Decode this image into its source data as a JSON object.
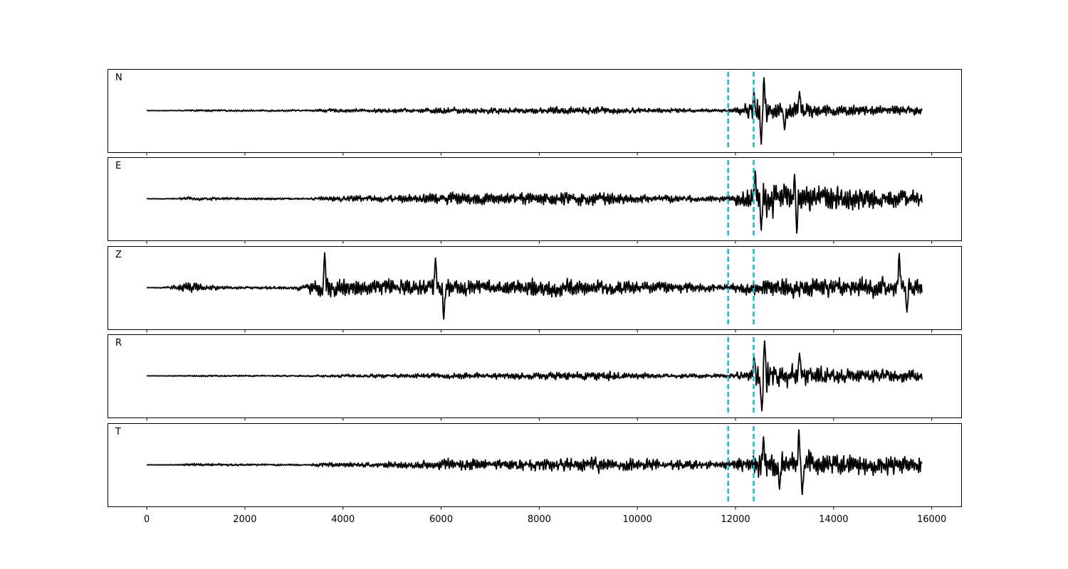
{
  "chart_data": {
    "type": "line",
    "xlim": [
      -800,
      16600
    ],
    "x_ticks": [
      "0",
      "2000",
      "4000",
      "6000",
      "8000",
      "10000",
      "12000",
      "14000",
      "16000"
    ],
    "tick_values": [
      0,
      2000,
      4000,
      6000,
      8000,
      10000,
      12000,
      14000,
      16000
    ],
    "x_range": [
      0,
      15800
    ],
    "vlines": [
      11850,
      12370
    ],
    "vline_color": "#17becf",
    "trace_color": "#000000",
    "grid": false,
    "panels": [
      {
        "label": "N",
        "envelope": [
          [
            0,
            0.015
          ],
          [
            700,
            0.02
          ],
          [
            900,
            0.05
          ],
          [
            3300,
            0.05
          ],
          [
            3500,
            0.09
          ],
          [
            5500,
            0.12
          ],
          [
            6100,
            0.18
          ],
          [
            7800,
            0.16
          ],
          [
            8000,
            0.2
          ],
          [
            9000,
            0.22
          ],
          [
            10000,
            0.15
          ],
          [
            11800,
            0.08
          ],
          [
            12000,
            0.15
          ],
          [
            12300,
            0.5
          ],
          [
            12500,
            1.0
          ],
          [
            12700,
            0.5
          ],
          [
            13000,
            0.4
          ],
          [
            13300,
            0.5
          ],
          [
            14000,
            0.3
          ],
          [
            15000,
            0.25
          ],
          [
            15800,
            0.3
          ]
        ],
        "spikes": [
          [
            12380,
            0.55
          ],
          [
            12580,
            0.94
          ],
          [
            12530,
            -0.96
          ],
          [
            13300,
            0.55
          ],
          [
            13000,
            -0.55
          ]
        ]
      },
      {
        "label": "E",
        "envelope": [
          [
            0,
            0.015
          ],
          [
            600,
            0.03
          ],
          [
            800,
            0.1
          ],
          [
            1300,
            0.08
          ],
          [
            3300,
            0.04
          ],
          [
            3500,
            0.12
          ],
          [
            5600,
            0.25
          ],
          [
            6200,
            0.35
          ],
          [
            7500,
            0.3
          ],
          [
            8000,
            0.35
          ],
          [
            9000,
            0.4
          ],
          [
            10000,
            0.25
          ],
          [
            11800,
            0.15
          ],
          [
            12200,
            0.5
          ],
          [
            12400,
            0.8
          ],
          [
            12600,
            1.0
          ],
          [
            13300,
            0.8
          ],
          [
            14000,
            0.7
          ],
          [
            15000,
            0.5
          ],
          [
            15800,
            0.5
          ]
        ],
        "spikes": [
          [
            12400,
            0.8
          ],
          [
            12530,
            -0.9
          ],
          [
            13250,
            -1.0
          ],
          [
            13200,
            0.7
          ]
        ]
      },
      {
        "label": "Z",
        "envelope": [
          [
            0,
            0.01
          ],
          [
            400,
            0.05
          ],
          [
            700,
            0.2
          ],
          [
            900,
            0.4
          ],
          [
            1200,
            0.15
          ],
          [
            2000,
            0.06
          ],
          [
            3000,
            0.1
          ],
          [
            3300,
            0.3
          ],
          [
            3600,
            0.6
          ],
          [
            4500,
            0.4
          ],
          [
            6000,
            0.5
          ],
          [
            7000,
            0.4
          ],
          [
            8000,
            0.55
          ],
          [
            9000,
            0.45
          ],
          [
            10000,
            0.35
          ],
          [
            11800,
            0.25
          ],
          [
            12600,
            0.45
          ],
          [
            13500,
            0.55
          ],
          [
            15000,
            0.55
          ],
          [
            15800,
            0.5
          ]
        ],
        "spikes": [
          [
            3620,
            1.0
          ],
          [
            6050,
            -0.9
          ],
          [
            5880,
            0.85
          ],
          [
            15340,
            0.98
          ],
          [
            15500,
            -0.7
          ]
        ]
      },
      {
        "label": "R",
        "envelope": [
          [
            0,
            0.012
          ],
          [
            700,
            0.02
          ],
          [
            900,
            0.04
          ],
          [
            3300,
            0.04
          ],
          [
            3500,
            0.08
          ],
          [
            5500,
            0.12
          ],
          [
            6100,
            0.18
          ],
          [
            7800,
            0.18
          ],
          [
            8000,
            0.22
          ],
          [
            9400,
            0.25
          ],
          [
            10000,
            0.15
          ],
          [
            11800,
            0.1
          ],
          [
            12200,
            0.3
          ],
          [
            12400,
            0.6
          ],
          [
            12600,
            1.0
          ],
          [
            12800,
            0.6
          ],
          [
            13300,
            0.6
          ],
          [
            14000,
            0.45
          ],
          [
            15000,
            0.35
          ],
          [
            15800,
            0.35
          ]
        ],
        "spikes": [
          [
            12380,
            0.55
          ],
          [
            12590,
            1.0
          ],
          [
            12540,
            -1.0
          ],
          [
            13300,
            0.65
          ]
        ]
      },
      {
        "label": "T",
        "envelope": [
          [
            0,
            0.012
          ],
          [
            700,
            0.03
          ],
          [
            900,
            0.08
          ],
          [
            1800,
            0.06
          ],
          [
            3300,
            0.04
          ],
          [
            3500,
            0.12
          ],
          [
            5500,
            0.2
          ],
          [
            6200,
            0.35
          ],
          [
            7000,
            0.3
          ],
          [
            9000,
            0.4
          ],
          [
            10000,
            0.3
          ],
          [
            11800,
            0.25
          ],
          [
            12200,
            0.4
          ],
          [
            12500,
            0.7
          ],
          [
            13300,
            0.9
          ],
          [
            14000,
            0.6
          ],
          [
            15000,
            0.5
          ],
          [
            15800,
            0.5
          ]
        ],
        "spikes": [
          [
            13290,
            1.0
          ],
          [
            13360,
            -0.85
          ],
          [
            12570,
            0.8
          ],
          [
            12900,
            -0.7
          ]
        ]
      }
    ]
  }
}
